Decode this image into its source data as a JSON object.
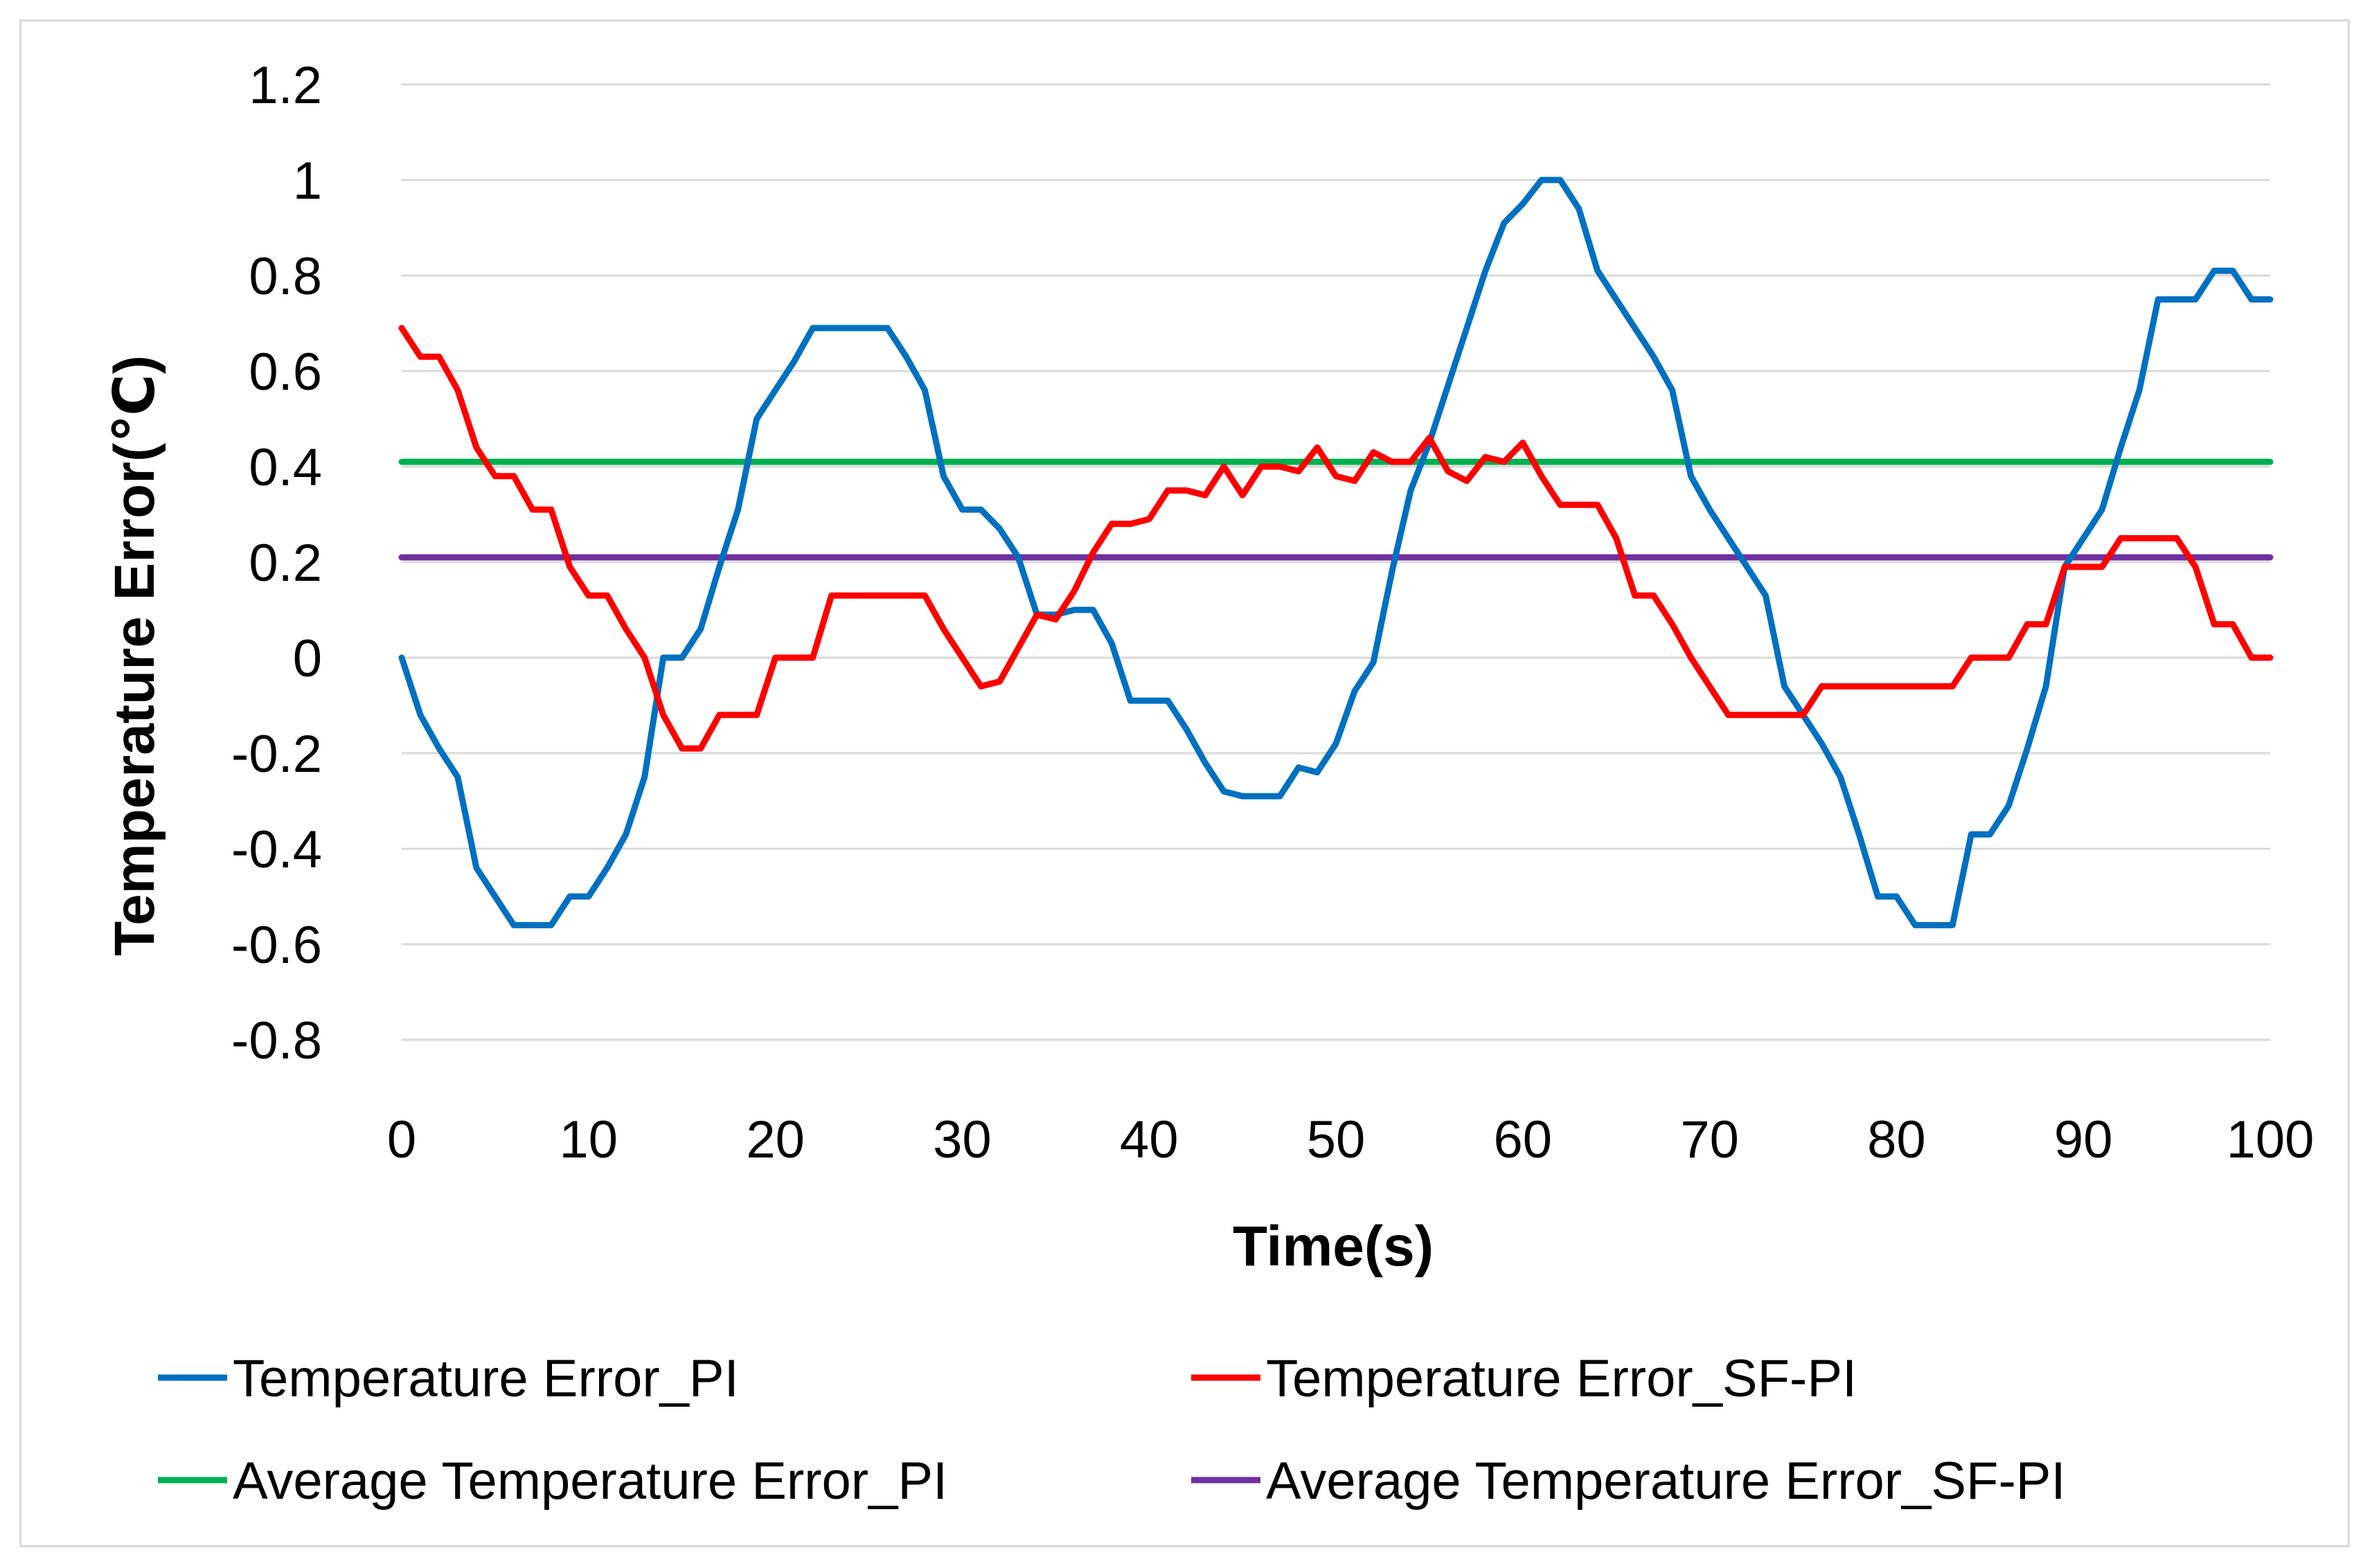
{
  "chart_data": {
    "type": "line",
    "title": "",
    "xlabel": "Time(s)",
    "ylabel": "Temperature Error(℃)",
    "xlim": [
      0,
      100
    ],
    "ylim": [
      -0.8,
      1.2
    ],
    "x_ticks": [
      0,
      10,
      20,
      30,
      40,
      50,
      60,
      70,
      80,
      90,
      100
    ],
    "x_tick_labels": [
      "0",
      "10",
      "20",
      "30",
      "40",
      "50",
      "60",
      "70",
      "80",
      "90",
      "100"
    ],
    "y_ticks": [
      -0.8,
      -0.6,
      -0.4,
      -0.2,
      0,
      0.2,
      0.4,
      0.6,
      0.8,
      1,
      1.2
    ],
    "y_tick_labels": [
      "-0.8",
      "-0.6",
      "-0.4",
      "-0.2",
      "0",
      "0.2",
      "0.4",
      "0.6",
      "0.8",
      "1",
      "1.2"
    ],
    "grid": true,
    "legend_position": "bottom",
    "series": [
      {
        "name": "Temperature Error_PI",
        "color": "#0070C0",
        "x": [
          0,
          1,
          2,
          3,
          4,
          5,
          6,
          7,
          8,
          9,
          10,
          11,
          12,
          13,
          14,
          15,
          16,
          17,
          18,
          19,
          20,
          21,
          22,
          23,
          24,
          25,
          26,
          27,
          28,
          29,
          30,
          31,
          32,
          33,
          34,
          35,
          36,
          37,
          38,
          39,
          40,
          41,
          42,
          43,
          44,
          45,
          46,
          47,
          48,
          49,
          50,
          51,
          52,
          53,
          54,
          55,
          56,
          57,
          58,
          59,
          60,
          61,
          62,
          63,
          64,
          65,
          66,
          67,
          68,
          69,
          70,
          71,
          72,
          73,
          74,
          75,
          76,
          77,
          78,
          79,
          80,
          81,
          82,
          83,
          84,
          85,
          86,
          87,
          88,
          89,
          90,
          91,
          92,
          93,
          94,
          95,
          96,
          97,
          98,
          99,
          100
        ],
        "y": [
          0,
          -0.12,
          -0.19,
          -0.25,
          -0.44,
          -0.5,
          -0.56,
          -0.56,
          -0.56,
          -0.5,
          -0.5,
          -0.44,
          -0.37,
          -0.25,
          0,
          0,
          0.06,
          0.19,
          0.31,
          0.5,
          0.56,
          0.62,
          0.69,
          0.69,
          0.69,
          0.69,
          0.69,
          0.63,
          0.56,
          0.38,
          0.31,
          0.31,
          0.27,
          0.21,
          0.09,
          0.09,
          0.1,
          0.1,
          0.03,
          -0.09,
          -0.09,
          -0.09,
          -0.15,
          -0.22,
          -0.28,
          -0.29,
          -0.29,
          -0.29,
          -0.23,
          -0.24,
          -0.18,
          -0.07,
          -0.01,
          0.18,
          0.35,
          0.45,
          0.57,
          0.69,
          0.81,
          0.91,
          0.95,
          1.0,
          1.0,
          0.94,
          0.81,
          0.75,
          0.69,
          0.63,
          0.56,
          0.38,
          0.31,
          0.25,
          0.19,
          0.13,
          -0.06,
          -0.12,
          -0.18,
          -0.25,
          -0.37,
          -0.5,
          -0.5,
          -0.56,
          -0.56,
          -0.56,
          -0.37,
          -0.37,
          -0.31,
          -0.19,
          -0.06,
          0.19,
          0.25,
          0.31,
          0.44,
          0.56,
          0.75,
          0.75,
          0.75,
          0.81,
          0.81,
          0.75,
          0.75
        ]
      },
      {
        "name": "Temperature Error_SF-PI",
        "color": "#FF0000",
        "x": [
          0,
          1,
          2,
          3,
          4,
          5,
          6,
          7,
          8,
          9,
          10,
          11,
          12,
          13,
          14,
          15,
          16,
          17,
          18,
          19,
          20,
          21,
          22,
          23,
          24,
          25,
          26,
          27,
          28,
          29,
          30,
          31,
          32,
          33,
          34,
          35,
          36,
          37,
          38,
          39,
          40,
          41,
          42,
          43,
          44,
          45,
          46,
          47,
          48,
          49,
          50,
          51,
          52,
          53,
          54,
          55,
          56,
          57,
          58,
          59,
          60,
          61,
          62,
          63,
          64,
          65,
          66,
          67,
          68,
          69,
          70,
          71,
          72,
          73,
          74,
          75,
          76,
          77,
          78,
          79,
          80,
          81,
          82,
          83,
          84,
          85,
          86,
          87,
          88,
          89,
          90,
          91,
          92,
          93,
          94,
          95,
          96,
          97,
          98,
          99,
          100
        ],
        "y": [
          0.69,
          0.63,
          0.63,
          0.56,
          0.44,
          0.38,
          0.38,
          0.31,
          0.31,
          0.19,
          0.13,
          0.13,
          0.06,
          0,
          -0.12,
          -0.19,
          -0.19,
          -0.12,
          -0.12,
          -0.12,
          0,
          0,
          0,
          0.13,
          0.13,
          0.13,
          0.13,
          0.13,
          0.13,
          0.06,
          0,
          -0.06,
          -0.05,
          0.02,
          0.09,
          0.08,
          0.14,
          0.22,
          0.28,
          0.28,
          0.29,
          0.35,
          0.35,
          0.34,
          0.4,
          0.34,
          0.4,
          0.4,
          0.39,
          0.44,
          0.38,
          0.37,
          0.43,
          0.41,
          0.41,
          0.46,
          0.39,
          0.37,
          0.42,
          0.41,
          0.45,
          0.38,
          0.32,
          0.32,
          0.32,
          0.25,
          0.13,
          0.13,
          0.07,
          0,
          -0.06,
          -0.12,
          -0.12,
          -0.12,
          -0.12,
          -0.12,
          -0.06,
          -0.06,
          -0.06,
          -0.06,
          -0.06,
          -0.06,
          -0.06,
          -0.06,
          0,
          0,
          0,
          0.07,
          0.07,
          0.19,
          0.19,
          0.19,
          0.25,
          0.25,
          0.25,
          0.25,
          0.19,
          0.07,
          0.07,
          0,
          0
        ]
      },
      {
        "name": "Average Temperature Error_PI",
        "color": "#00B050",
        "x": [
          0,
          100
        ],
        "y": [
          0.41,
          0.41
        ]
      },
      {
        "name": "Average Temperature Error_SF-PI",
        "color": "#7030A0",
        "x": [
          0,
          100
        ],
        "y": [
          0.21,
          0.21
        ]
      }
    ]
  }
}
